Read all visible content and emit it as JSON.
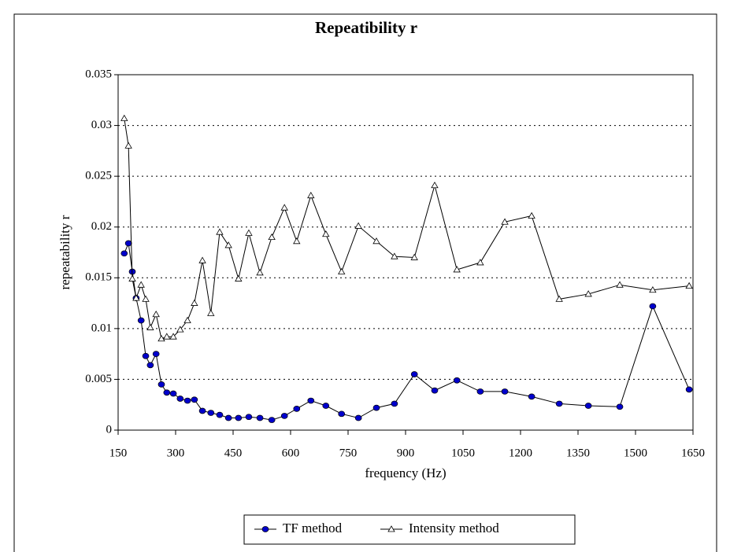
{
  "chart_data": {
    "type": "line",
    "title": "Repeatibility r",
    "xlabel": "frequency (Hz)",
    "ylabel": "repeatability r",
    "x": [
      166,
      177,
      187,
      197,
      210,
      222,
      234,
      249,
      263,
      277,
      294,
      312,
      331,
      349,
      370,
      392,
      415,
      438,
      464,
      491,
      520,
      551,
      584,
      616,
      653,
      692,
      733,
      777,
      824,
      871,
      923,
      976,
      1034,
      1095,
      1159,
      1229,
      1301,
      1377,
      1459,
      1545,
      1640
    ],
    "series": [
      {
        "name": "TF method",
        "color": "#0000cc",
        "marker": "circle",
        "values": [
          0.0174,
          0.0184,
          0.0156,
          0.013,
          0.0108,
          0.0073,
          0.0064,
          0.0075,
          0.0045,
          0.0037,
          0.0036,
          0.0031,
          0.0029,
          0.003,
          0.0019,
          0.0017,
          0.0015,
          0.0012,
          0.0012,
          0.0013,
          0.0012,
          0.001,
          0.0014,
          0.0021,
          0.0029,
          0.0024,
          0.0016,
          0.0012,
          0.0022,
          0.0026,
          0.0055,
          0.0039,
          0.0049,
          0.0038,
          0.0038,
          0.0033,
          0.0026,
          0.0024,
          0.0023,
          0.0122,
          0.004
        ]
      },
      {
        "name": "Intensity method",
        "color": "#000000",
        "marker": "triangle",
        "values": [
          0.0307,
          0.028,
          0.0149,
          0.013,
          0.0143,
          0.0129,
          0.0101,
          0.0114,
          0.009,
          0.0092,
          0.0092,
          0.0099,
          0.0108,
          0.0125,
          0.0167,
          0.0115,
          0.0195,
          0.0182,
          0.0149,
          0.0194,
          0.0155,
          0.019,
          0.0219,
          0.0186,
          0.0231,
          0.0193,
          0.0156,
          0.0201,
          0.0186,
          0.0171,
          0.017,
          0.0241,
          0.0158,
          0.0165,
          0.0205,
          0.0211,
          0.0129,
          0.0134,
          0.0143,
          0.0138,
          0.0142
        ]
      }
    ],
    "xlim": [
      150,
      1650
    ],
    "xticks": [
      150,
      300,
      450,
      600,
      750,
      900,
      1050,
      1200,
      1350,
      1500,
      1650
    ],
    "ylim": [
      0,
      0.035
    ],
    "yticks": [
      0,
      0.005,
      0.01,
      0.015,
      0.02,
      0.025,
      0.03,
      0.035
    ],
    "grid": true,
    "legend": "bottom"
  }
}
